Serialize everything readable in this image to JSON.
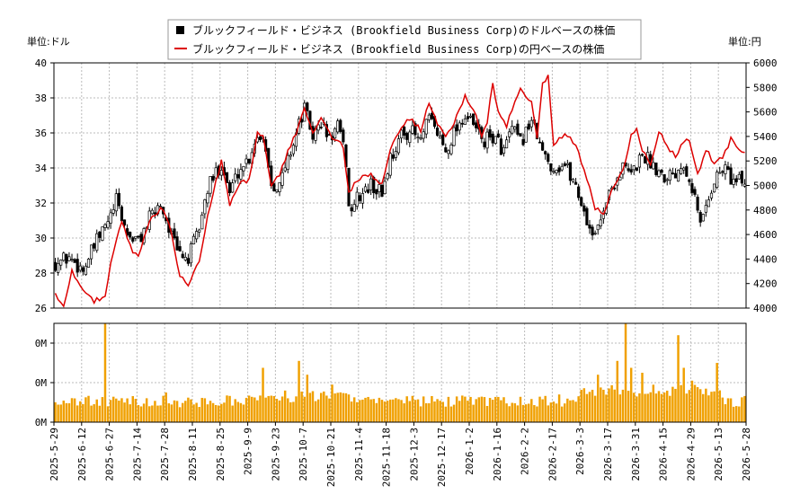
{
  "chart_data": {
    "type": "line",
    "legend": {
      "placement": "top-center",
      "entries": [
        {
          "label": "ブルックフィールド・ビジネス (Brookfield Business Corp)のドルベースの株価",
          "color": "#000000",
          "style": "candlestick"
        },
        {
          "label": "ブルックフィールド・ビジネス (Brookfield Business Corp)の円ベースの株価",
          "color": "#dd0000",
          "style": "line"
        }
      ]
    },
    "y_left_unit": "単位:ドル",
    "y_right_unit": "単位:円",
    "y_left_range": [
      26,
      40
    ],
    "y_left_ticks": [
      "40",
      "38",
      "36",
      "34",
      "32",
      "30",
      "28",
      "26"
    ],
    "y_right_range": [
      4000,
      6000
    ],
    "y_right_ticks": [
      "6000",
      "5800",
      "5600",
      "5400",
      "5200",
      "5000",
      "4800",
      "4600",
      "4400",
      "4200",
      "4000"
    ],
    "volume_ticks": [
      "0M",
      "0M",
      "0M"
    ],
    "grid": true,
    "x_ticks": [
      "2025-5-29",
      "2025-6-12",
      "2025-6-27",
      "2025-7-14",
      "2025-7-28",
      "2025-8-11",
      "2025-8-25",
      "2025-9-9",
      "2025-9-23",
      "2025-10-7",
      "2025-10-21",
      "2025-11-4",
      "2025-11-18",
      "2025-12-3",
      "2025-12-17",
      "2026-1-2",
      "2026-1-16",
      "2026-2-2",
      "2026-2-17",
      "2026-3-3",
      "2026-3-17",
      "2026-3-31",
      "2026-4-15",
      "2026-4-29",
      "2026-5-13",
      "2026-5-28"
    ],
    "usd_close_anchors": [
      [
        0,
        28.6
      ],
      [
        5,
        28.9
      ],
      [
        10,
        28.2
      ],
      [
        15,
        29.8
      ],
      [
        20,
        31.2
      ],
      [
        22,
        32.1
      ],
      [
        26,
        30.2
      ],
      [
        30,
        29.8
      ],
      [
        34,
        31.1
      ],
      [
        38,
        32.0
      ],
      [
        41,
        30.6
      ],
      [
        44,
        29.2
      ],
      [
        48,
        28.8
      ],
      [
        52,
        30.6
      ],
      [
        55,
        32.8
      ],
      [
        60,
        34.3
      ],
      [
        63,
        32.6
      ],
      [
        66,
        33.8
      ],
      [
        70,
        34.6
      ],
      [
        72,
        35.6
      ],
      [
        75,
        36.0
      ],
      [
        78,
        33.2
      ],
      [
        81,
        33.0
      ],
      [
        84,
        34.5
      ],
      [
        87,
        36.0
      ],
      [
        90,
        37.4
      ],
      [
        93,
        35.8
      ],
      [
        96,
        36.6
      ],
      [
        99,
        35.6
      ],
      [
        102,
        36.4
      ],
      [
        105,
        34.4
      ],
      [
        106,
        31.6
      ],
      [
        110,
        32.4
      ],
      [
        114,
        33.0
      ],
      [
        118,
        32.6
      ],
      [
        121,
        34.6
      ],
      [
        125,
        35.8
      ],
      [
        128,
        36.2
      ],
      [
        132,
        35.5
      ],
      [
        135,
        36.8
      ],
      [
        138,
        36.0
      ],
      [
        141,
        35.0
      ],
      [
        145,
        36.4
      ],
      [
        148,
        37.0
      ],
      [
        152,
        36.2
      ],
      [
        155,
        35.5
      ],
      [
        158,
        35.8
      ],
      [
        162,
        35.0
      ],
      [
        165,
        36.2
      ],
      [
        168,
        35.4
      ],
      [
        172,
        36.8
      ],
      [
        176,
        34.8
      ],
      [
        180,
        34.0
      ],
      [
        184,
        34.2
      ],
      [
        188,
        33.0
      ],
      [
        192,
        31.0
      ],
      [
        195,
        30.0
      ],
      [
        198,
        31.8
      ],
      [
        202,
        33.2
      ],
      [
        205,
        34.0
      ],
      [
        208,
        33.6
      ],
      [
        212,
        34.8
      ],
      [
        216,
        34.2
      ],
      [
        220,
        33.6
      ],
      [
        224,
        33.8
      ],
      [
        227,
        34.4
      ],
      [
        230,
        33.0
      ],
      [
        233,
        30.8
      ],
      [
        236,
        32.4
      ],
      [
        239,
        33.6
      ],
      [
        242,
        34.0
      ],
      [
        245,
        33.2
      ]
    ],
    "jpy_close_anchors": [
      [
        0,
        4120
      ],
      [
        3,
        4020
      ],
      [
        6,
        4300
      ],
      [
        10,
        4160
      ],
      [
        14,
        4060
      ],
      [
        18,
        4100
      ],
      [
        20,
        4380
      ],
      [
        24,
        4700
      ],
      [
        28,
        4460
      ],
      [
        30,
        4420
      ],
      [
        34,
        4700
      ],
      [
        38,
        4820
      ],
      [
        41,
        4700
      ],
      [
        45,
        4260
      ],
      [
        48,
        4200
      ],
      [
        52,
        4400
      ],
      [
        56,
        4850
      ],
      [
        60,
        5200
      ],
      [
        63,
        4850
      ],
      [
        66,
        5000
      ],
      [
        70,
        5050
      ],
      [
        73,
        5420
      ],
      [
        75,
        5420
      ],
      [
        78,
        5000
      ],
      [
        81,
        5080
      ],
      [
        84,
        5280
      ],
      [
        87,
        5420
      ],
      [
        90,
        5640
      ],
      [
        93,
        5440
      ],
      [
        96,
        5560
      ],
      [
        100,
        5400
      ],
      [
        104,
        5320
      ],
      [
        106,
        4950
      ],
      [
        110,
        5060
      ],
      [
        114,
        5080
      ],
      [
        118,
        5020
      ],
      [
        121,
        5300
      ],
      [
        125,
        5450
      ],
      [
        128,
        5550
      ],
      [
        132,
        5450
      ],
      [
        135,
        5680
      ],
      [
        138,
        5500
      ],
      [
        141,
        5400
      ],
      [
        145,
        5560
      ],
      [
        148,
        5720
      ],
      [
        152,
        5560
      ],
      [
        154,
        5400
      ],
      [
        156,
        5520
      ],
      [
        158,
        5840
      ],
      [
        160,
        5600
      ],
      [
        163,
        5480
      ],
      [
        165,
        5620
      ],
      [
        168,
        5780
      ],
      [
        172,
        5680
      ],
      [
        174,
        5380
      ],
      [
        176,
        5820
      ],
      [
        178,
        5900
      ],
      [
        180,
        5320
      ],
      [
        184,
        5420
      ],
      [
        188,
        5330
      ],
      [
        192,
        5050
      ],
      [
        195,
        4820
      ],
      [
        198,
        4750
      ],
      [
        201,
        4950
      ],
      [
        204,
        5080
      ],
      [
        206,
        5200
      ],
      [
        208,
        5420
      ],
      [
        210,
        5470
      ],
      [
        212,
        5280
      ],
      [
        215,
        5180
      ],
      [
        218,
        5450
      ],
      [
        221,
        5320
      ],
      [
        224,
        5240
      ],
      [
        227,
        5350
      ],
      [
        229,
        5380
      ],
      [
        232,
        5080
      ],
      [
        235,
        5300
      ],
      [
        238,
        5180
      ],
      [
        241,
        5220
      ],
      [
        244,
        5380
      ],
      [
        247,
        5280
      ]
    ],
    "volume_spikes": [
      [
        18,
        1.0
      ],
      [
        40,
        0.3
      ],
      [
        72,
        0.25
      ],
      [
        75,
        0.55
      ],
      [
        88,
        0.62
      ],
      [
        91,
        0.48
      ],
      [
        100,
        0.38
      ],
      [
        133,
        0.26
      ],
      [
        145,
        0.26
      ],
      [
        182,
        0.28
      ],
      [
        196,
        0.48
      ],
      [
        203,
        0.62
      ],
      [
        206,
        1.0
      ],
      [
        208,
        0.55
      ],
      [
        212,
        0.5
      ],
      [
        225,
        0.88
      ],
      [
        227,
        0.55
      ],
      [
        230,
        0.42
      ],
      [
        239,
        0.6
      ]
    ]
  }
}
